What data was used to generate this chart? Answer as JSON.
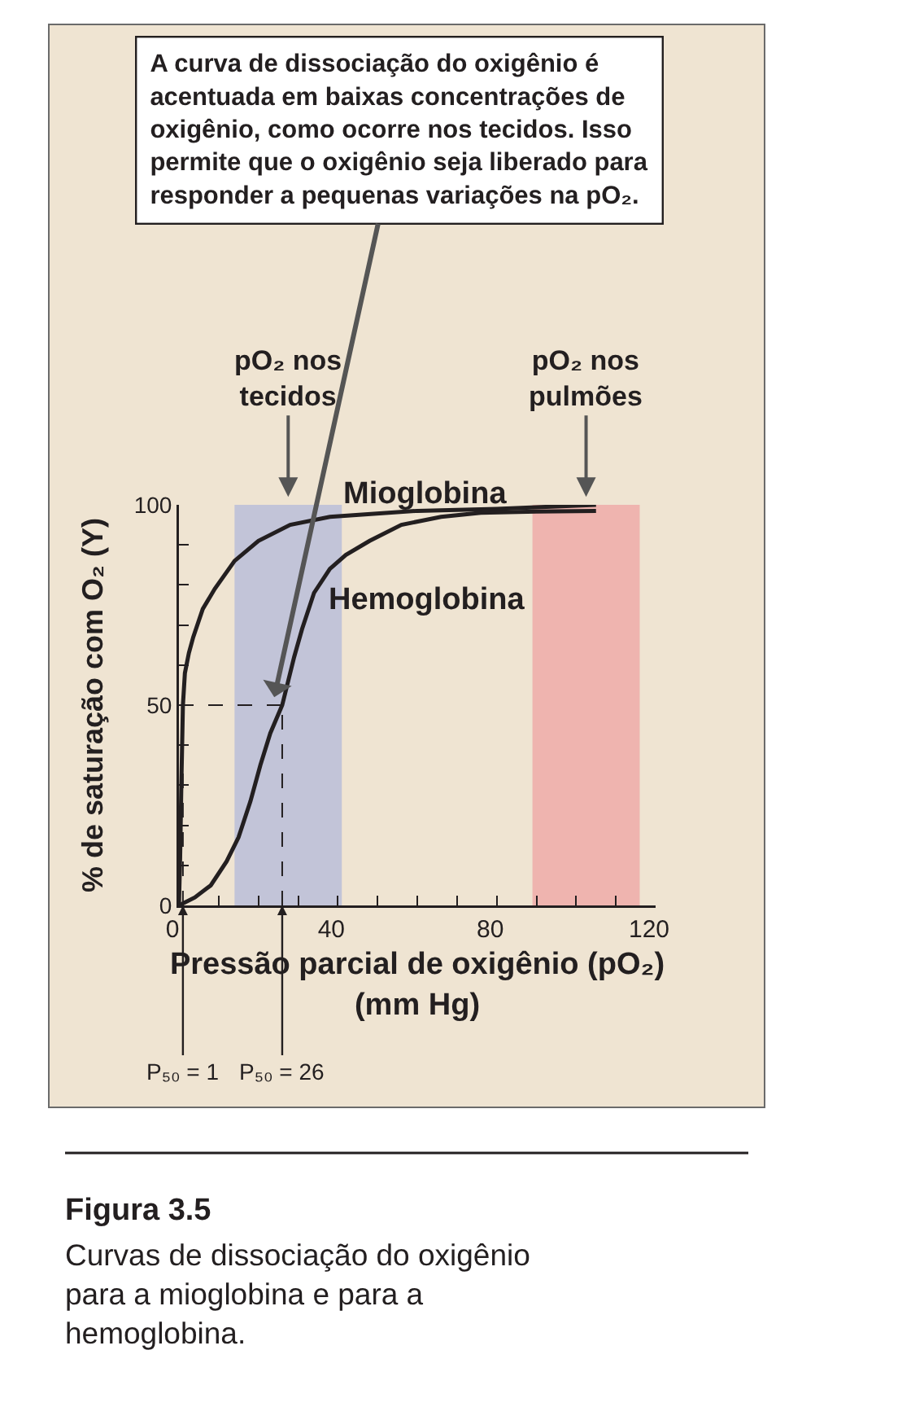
{
  "chart_data": {
    "type": "line",
    "xlabel": "Pressão parcial de oxigênio (pO₂)\n(mm Hg)",
    "ylabel": "% de saturação com O₂ (Y)",
    "xlim": [
      0,
      120
    ],
    "ylim": [
      0,
      100
    ],
    "xticks": [
      0,
      {
        "value": 10,
        "label": null
      },
      {
        "value": 20,
        "label": null
      },
      {
        "value": 30,
        "label": null
      },
      40,
      {
        "value": 50,
        "label": null
      },
      {
        "value": 60,
        "label": null
      },
      {
        "value": 70,
        "label": null
      },
      80,
      {
        "value": 90,
        "label": null
      },
      {
        "value": 100,
        "label": null
      },
      {
        "value": 110,
        "label": null
      },
      120
    ],
    "yticks": [
      0,
      {
        "value": 10,
        "label": null
      },
      {
        "value": 20,
        "label": null
      },
      {
        "value": 30,
        "label": null
      },
      {
        "value": 40,
        "label": null
      },
      50,
      {
        "value": 60,
        "label": null
      },
      {
        "value": 70,
        "label": null
      },
      {
        "value": 80,
        "label": null
      },
      {
        "value": 90,
        "label": null
      },
      100
    ],
    "grid": false,
    "legend": false,
    "marker": "none",
    "line_style": "solid",
    "series": [
      {
        "name": "Mioglobina",
        "color": "#231f20",
        "x": [
          0,
          0.3,
          0.6,
          1,
          1.5,
          2.5,
          3.6,
          6,
          9,
          14,
          20,
          28,
          38,
          60,
          80,
          105
        ],
        "values": [
          0,
          12,
          30,
          50,
          58,
          63,
          67,
          74,
          79,
          86,
          91,
          95,
          97,
          98.5,
          99,
          100
        ]
      },
      {
        "name": "Hemoglobina",
        "color": "#231f20",
        "x": [
          0,
          4,
          8,
          12,
          15,
          18,
          20.5,
          23,
          26,
          29,
          31,
          34,
          38,
          42,
          48,
          56,
          66,
          76,
          90,
          105
        ],
        "values": [
          0,
          2,
          5,
          11,
          17,
          26,
          35,
          43,
          50,
          62,
          69,
          78,
          84,
          87.5,
          91,
          95,
          97,
          98,
          98.3,
          98.5
        ]
      }
    ],
    "bands": [
      {
        "axis": "x",
        "from": 14,
        "to": 41,
        "label": "pO₂ nos\ntecidos",
        "color": "#8c9ee0"
      },
      {
        "axis": "x",
        "from": 89,
        "to": 116,
        "label": "pO₂ nos\npulmões",
        "color": "#ef7a86"
      }
    ],
    "ref_lines": [
      {
        "axis": "x",
        "value": 1,
        "label": "P₅₀ = 1",
        "line_style": "dashed"
      },
      {
        "axis": "x",
        "value": 26,
        "label": "P₅₀ = 26",
        "line_style": "dashed"
      },
      {
        "axis": "y",
        "value": 50,
        "line_style": "dashed"
      }
    ],
    "annotations": [
      {
        "text": "A curva de dissociação do oxigênio é\nacentuada em baixas concentrações de\noxigênio, como ocorre nos tecidos. Isso\npermite que o oxigênio seja liberado para\nresponder a pequenas variações na pO₂.",
        "x": 24,
        "y": 52
      },
      "Figura 3.5",
      "Curvas de dissociação do oxigênio\npara a mioglobina e para a\nhemoglobina."
    ]
  }
}
